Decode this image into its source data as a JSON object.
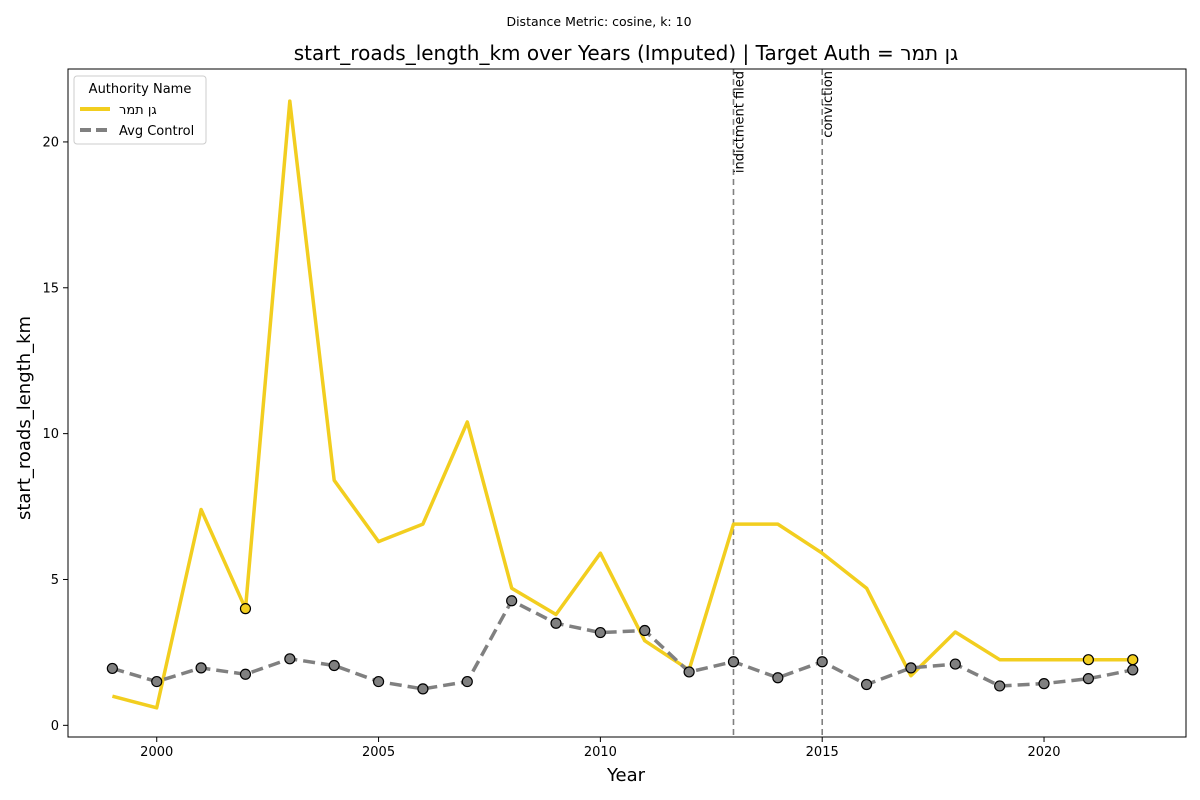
{
  "chart_data": {
    "type": "line",
    "suptitle": "Distance Metric: cosine, k: 10",
    "title": "start_roads_length_km over Years (Imputed) | Target Auth = גן תמר",
    "xlabel": "Year",
    "ylabel": "start_roads_length_km",
    "xlim": [
      1998.0,
      2023.2
    ],
    "ylim": [
      -0.4,
      22.5
    ],
    "xticks": [
      2000,
      2005,
      2010,
      2015,
      2020
    ],
    "yticks": [
      0,
      5,
      10,
      15,
      20
    ],
    "legend": {
      "title": "Authority Name",
      "position": "top-left"
    },
    "series": [
      {
        "name": "גן תמר",
        "color": "#f2ce1f",
        "style": "solid",
        "x": [
          1999,
          2000,
          2001,
          2002,
          2003,
          2004,
          2005,
          2006,
          2007,
          2008,
          2009,
          2010,
          2011,
          2012,
          2013,
          2014,
          2015,
          2016,
          2017,
          2018,
          2019,
          2020,
          2021,
          2022
        ],
        "values": [
          1.0,
          0.6,
          7.4,
          4.0,
          21.4,
          8.4,
          6.3,
          6.9,
          10.4,
          4.7,
          3.8,
          5.9,
          2.9,
          1.9,
          6.9,
          6.9,
          5.9,
          4.7,
          1.7,
          3.2,
          2.25,
          2.25,
          2.25,
          2.25
        ],
        "marked_x": [
          2002,
          2021,
          2022
        ]
      },
      {
        "name": "Avg Control",
        "color": "#808080",
        "style": "dashed",
        "x": [
          1999,
          2000,
          2001,
          2002,
          2003,
          2004,
          2005,
          2006,
          2007,
          2008,
          2009,
          2010,
          2011,
          2012,
          2013,
          2014,
          2015,
          2016,
          2017,
          2018,
          2019,
          2020,
          2021,
          2022
        ],
        "values": [
          1.95,
          1.5,
          1.97,
          1.75,
          2.28,
          2.05,
          1.5,
          1.25,
          1.5,
          4.27,
          3.5,
          3.18,
          3.25,
          1.83,
          2.18,
          1.63,
          2.18,
          1.4,
          1.97,
          2.1,
          1.35,
          1.43,
          1.6,
          1.9
        ],
        "marked_x": [
          1999,
          2000,
          2001,
          2002,
          2003,
          2004,
          2005,
          2006,
          2007,
          2008,
          2009,
          2010,
          2011,
          2012,
          2013,
          2014,
          2015,
          2016,
          2017,
          2018,
          2019,
          2020,
          2021,
          2022
        ]
      }
    ],
    "events": [
      {
        "x": 2013,
        "label": "indictment filed"
      },
      {
        "x": 2015,
        "label": "conviction"
      }
    ]
  }
}
